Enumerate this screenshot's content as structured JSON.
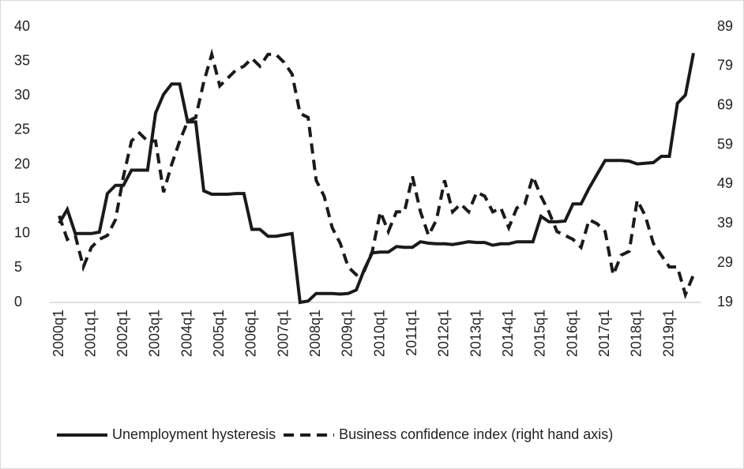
{
  "chart_data": {
    "type": "line",
    "categories": [
      "2000q1",
      null,
      null,
      null,
      "2001q1",
      null,
      null,
      null,
      "2002q1",
      null,
      null,
      null,
      "2003q1",
      null,
      null,
      null,
      "2004q1",
      null,
      null,
      null,
      "2005q1",
      null,
      null,
      null,
      "2006q1",
      null,
      null,
      null,
      "2007q1",
      null,
      null,
      null,
      "2008q1",
      null,
      null,
      null,
      "2009q1",
      null,
      null,
      null,
      "2010q1",
      null,
      null,
      null,
      "2011q1",
      null,
      null,
      null,
      "2012q1",
      null,
      null,
      null,
      "2013q1",
      null,
      null,
      null,
      "2014q1",
      null,
      null,
      null,
      "2015q1",
      null,
      null,
      null,
      "2016q1",
      null,
      null,
      null,
      "2017q1",
      null,
      null,
      null,
      "2018q1",
      null,
      null,
      null,
      "2019q1",
      null,
      null,
      null
    ],
    "series": [
      {
        "name": "Unemployment hysteresis",
        "color": "#1a1a1a",
        "dash": false,
        "axis": "y",
        "values": [
          11.5,
          13.5,
          10,
          10,
          10,
          10.2,
          15.8,
          17,
          17,
          19.2,
          19.2,
          19.2,
          27.5,
          30.2,
          31.7,
          31.7,
          26.2,
          26.2,
          16.2,
          15.7,
          15.7,
          15.7,
          15.8,
          15.8,
          10.6,
          10.6,
          9.6,
          9.6,
          9.8,
          10,
          0,
          0.2,
          1.3,
          1.3,
          1.3,
          1.2,
          1.3,
          1.8,
          4.8,
          7.2,
          7.3,
          7.3,
          8.1,
          8,
          8,
          8.8,
          8.6,
          8.5,
          8.5,
          8.4,
          8.6,
          8.8,
          8.7,
          8.7,
          8.3,
          8.5,
          8.5,
          8.8,
          8.8,
          8.8,
          12.5,
          11.7,
          11.7,
          11.8,
          14.3,
          14.3,
          16.6,
          18.6,
          20.6,
          20.6,
          20.6,
          20.5,
          20.1,
          20.2,
          20.3,
          21.2,
          21.2,
          28.9,
          30.1,
          36.2
        ]
      },
      {
        "name": "Business confidence index (right hand axis)",
        "color": "#1a1a1a",
        "dash": true,
        "axis": "y2",
        "values": [
          41,
          35,
          36,
          28,
          33,
          35,
          36,
          40,
          51,
          60,
          62,
          60,
          60,
          47,
          54,
          60,
          65,
          66,
          75,
          82,
          74,
          76,
          78,
          79,
          81,
          79,
          82,
          82,
          80,
          77,
          67,
          66,
          50,
          46,
          38,
          34,
          28,
          26,
          27,
          32,
          42,
          37,
          42,
          42,
          51,
          42,
          36,
          40,
          50,
          42,
          44,
          42,
          47,
          46,
          42,
          43,
          38,
          43,
          44,
          51,
          46,
          42,
          37,
          36,
          35,
          33,
          40,
          39,
          37,
          26,
          31,
          32,
          45,
          41,
          34,
          31,
          28,
          28,
          21,
          26
        ]
      }
    ],
    "ylim": [
      0,
      40
    ],
    "yticks": [
      0,
      5,
      10,
      15,
      20,
      25,
      30,
      35,
      40
    ],
    "y2lim": [
      19,
      89
    ],
    "y2ticks": [
      19,
      29,
      39,
      49,
      59,
      69,
      79,
      89
    ]
  }
}
